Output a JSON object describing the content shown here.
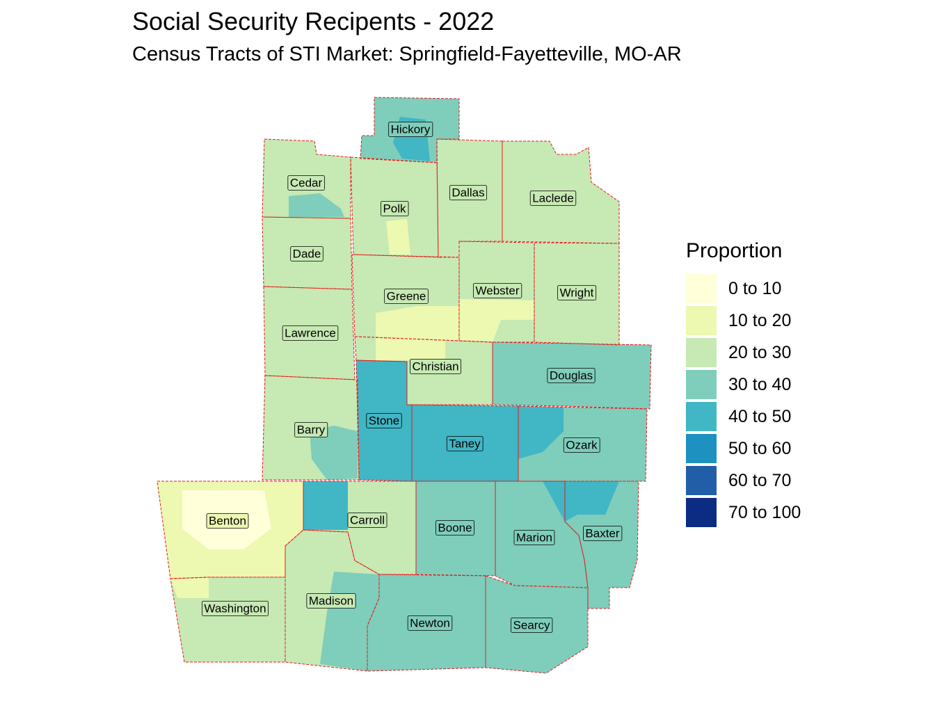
{
  "title": "Social Security Recipents - 2022",
  "subtitle": "Census Tracts of STI Market: Springfield-Fayetteville, MO-AR",
  "legend": {
    "title": "Proportion",
    "bins": [
      {
        "label": "0 to 10",
        "color": "#FFFFD9"
      },
      {
        "label": "10 to 20",
        "color": "#EDF8B1"
      },
      {
        "label": "20 to 30",
        "color": "#C7E9B4"
      },
      {
        "label": "30 to 40",
        "color": "#7FCDBB"
      },
      {
        "label": "40 to 50",
        "color": "#41B6C4"
      },
      {
        "label": "50 to 60",
        "color": "#1D91C0"
      },
      {
        "label": "60 to 70",
        "color": "#225EA8"
      },
      {
        "label": "70 to 100",
        "color": "#0C2C84"
      }
    ]
  },
  "counties": [
    {
      "name": "Hickory",
      "bin": "30 to 40"
    },
    {
      "name": "Cedar",
      "bin": "20 to 30"
    },
    {
      "name": "Polk",
      "bin": "20 to 30"
    },
    {
      "name": "Dallas",
      "bin": "20 to 30"
    },
    {
      "name": "Laclede",
      "bin": "20 to 30"
    },
    {
      "name": "Dade",
      "bin": "20 to 30"
    },
    {
      "name": "Greene",
      "bin": "20 to 30"
    },
    {
      "name": "Webster",
      "bin": "20 to 30"
    },
    {
      "name": "Wright",
      "bin": "20 to 30"
    },
    {
      "name": "Lawrence",
      "bin": "20 to 30"
    },
    {
      "name": "Christian",
      "bin": "20 to 30"
    },
    {
      "name": "Douglas",
      "bin": "30 to 40"
    },
    {
      "name": "Barry",
      "bin": "20 to 30"
    },
    {
      "name": "Stone",
      "bin": "40 to 50"
    },
    {
      "name": "Taney",
      "bin": "40 to 50"
    },
    {
      "name": "Ozark",
      "bin": "30 to 40"
    },
    {
      "name": "Benton",
      "bin": "10 to 20"
    },
    {
      "name": "Carroll",
      "bin": "20 to 30"
    },
    {
      "name": "Boone",
      "bin": "30 to 40"
    },
    {
      "name": "Marion",
      "bin": "30 to 40"
    },
    {
      "name": "Baxter",
      "bin": "30 to 40"
    },
    {
      "name": "Washington",
      "bin": "20 to 30"
    },
    {
      "name": "Madison",
      "bin": "20 to 30"
    },
    {
      "name": "Newton",
      "bin": "30 to 40"
    },
    {
      "name": "Searcy",
      "bin": "30 to 40"
    }
  ]
}
